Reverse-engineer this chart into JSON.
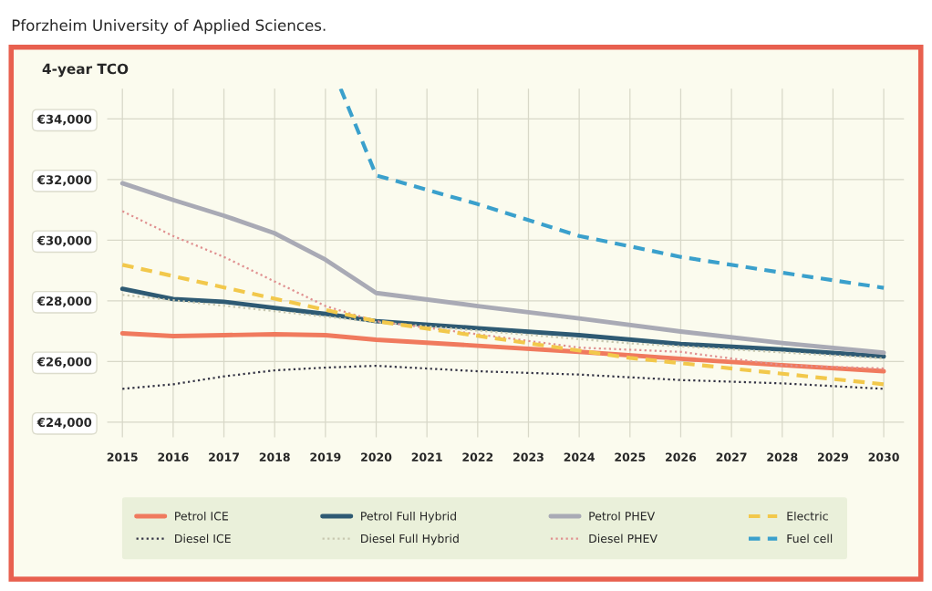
{
  "chart_data": {
    "type": "line",
    "title": "4-year TCO",
    "annotations": [
      "Pforzheim University of Applied Sciences."
    ],
    "xlim": [
      2014.7,
      2030.4
    ],
    "xticks": [
      2015,
      2016,
      2017,
      2018,
      2019,
      2020,
      2021,
      2022,
      2023,
      2024,
      2025,
      2026,
      2027,
      2028,
      2029,
      2030
    ],
    "ylim": [
      23500,
      35000
    ],
    "yticks": [
      {
        "value": 24000,
        "label": "€24,000"
      },
      {
        "value": 26000,
        "label": "€26,000"
      },
      {
        "value": 28000,
        "label": "€28,000"
      },
      {
        "value": 30000,
        "label": "€30,000"
      },
      {
        "value": 32000,
        "label": "€32,000"
      },
      {
        "value": 34000,
        "label": "€34,000"
      }
    ],
    "grid": true,
    "legend": "bottom",
    "marker": "none",
    "series": [
      {
        "name": "Petrol ICE",
        "color": "#f07a5e",
        "line_style": "solid",
        "x": [
          2015,
          2016,
          2017,
          2018,
          2019,
          2020,
          2022,
          2024,
          2026,
          2028,
          2030
        ],
        "values": [
          26930,
          26840,
          26870,
          26900,
          26870,
          26720,
          26520,
          26320,
          26090,
          25880,
          25680
        ]
      },
      {
        "name": "Diesel ICE",
        "color": "#333344",
        "line_style": "dotted",
        "x": [
          2015,
          2016,
          2017,
          2018,
          2019,
          2020,
          2022,
          2024,
          2026,
          2028,
          2030
        ],
        "values": [
          25100,
          25250,
          25510,
          25710,
          25800,
          25860,
          25680,
          25570,
          25390,
          25280,
          25100
        ]
      },
      {
        "name": "Petrol Full Hybrid",
        "color": "#2e5a73",
        "line_style": "solid",
        "x": [
          2015,
          2016,
          2017,
          2018,
          2019,
          2020,
          2022,
          2024,
          2026,
          2028,
          2030
        ],
        "values": [
          28400,
          28060,
          27970,
          27770,
          27570,
          27330,
          27100,
          26870,
          26580,
          26400,
          26170
        ]
      },
      {
        "name": "Diesel Full Hybrid",
        "color": "#c8c8b0",
        "line_style": "dotted",
        "x": [
          2015,
          2020,
          2025,
          2030
        ],
        "values": [
          28200,
          27300,
          26600,
          26100
        ]
      },
      {
        "name": "Petrol PHEV",
        "color": "#a9aab5",
        "line_style": "solid",
        "x": [
          2015,
          2016,
          2017,
          2018,
          2019,
          2020,
          2022,
          2024,
          2026,
          2028,
          2030
        ],
        "values": [
          31880,
          31330,
          30810,
          30230,
          29360,
          28260,
          27830,
          27420,
          26990,
          26610,
          26290
        ]
      },
      {
        "name": "Diesel PHEV",
        "color": "#e09090",
        "line_style": "dotted",
        "x": [
          2015,
          2016,
          2017,
          2018,
          2019,
          2020,
          2022,
          2024,
          2026,
          2028,
          2030
        ],
        "values": [
          30960,
          30140,
          29450,
          28640,
          27830,
          27330,
          26900,
          26460,
          26320,
          25880,
          25770
        ]
      },
      {
        "name": "Electric",
        "color": "#f2c84b",
        "line_style": "dashed",
        "x": [
          2015,
          2020,
          2025,
          2030
        ],
        "values": [
          29190,
          27330,
          26120,
          25250
        ]
      },
      {
        "name": "Fuel cell",
        "color": "#3aa0cc",
        "line_style": "dashed",
        "x": [
          2019.3,
          2020,
          2022,
          2024,
          2025,
          2026,
          2028,
          2030
        ],
        "values": [
          35000,
          32140,
          31190,
          30140,
          29800,
          29450,
          28930,
          28430
        ]
      }
    ]
  }
}
